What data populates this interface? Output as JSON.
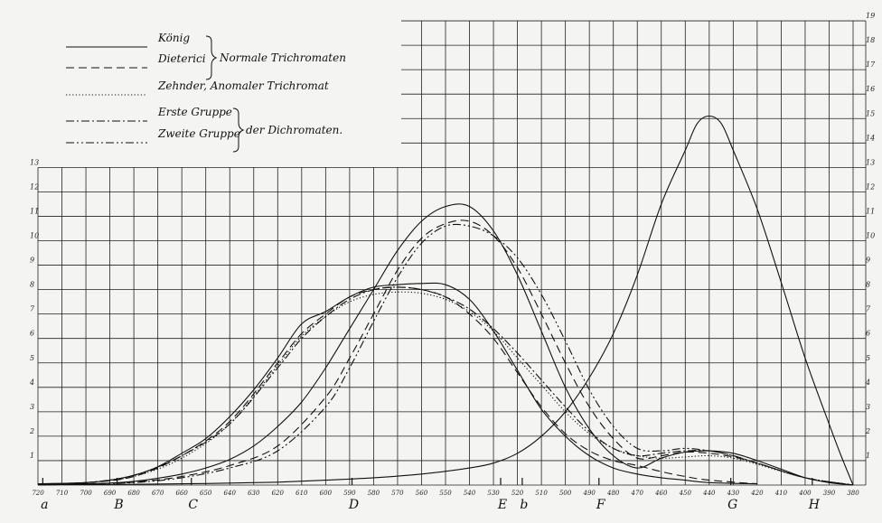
{
  "chart_data": {
    "type": "line",
    "x_ticks": [
      "720",
      "710",
      "700",
      "690",
      "680",
      "670",
      "660",
      "650",
      "640",
      "630",
      "620",
      "610",
      "600",
      "590",
      "580",
      "570",
      "560",
      "550",
      "540",
      "530",
      "520",
      "510",
      "500",
      "490",
      "480",
      "470",
      "460",
      "450",
      "440",
      "430",
      "420",
      "410",
      "400",
      "390",
      "380"
    ],
    "y_left_ticks": [
      "1",
      "2",
      "3",
      "4",
      "5",
      "6",
      "7",
      "8",
      "9",
      "10",
      "11",
      "12",
      "13"
    ],
    "y_right_ticks": [
      "1",
      "2",
      "3",
      "4",
      "5",
      "6",
      "7",
      "8",
      "9",
      "10",
      "11",
      "12",
      "13",
      "14",
      "15",
      "16",
      "17",
      "18",
      "19"
    ],
    "fraunhofer_lines": [
      {
        "label": "a",
        "x": 718
      },
      {
        "label": "B",
        "x": 687
      },
      {
        "label": "C",
        "x": 656
      },
      {
        "label": "D",
        "x": 589
      },
      {
        "label": "E",
        "x": 527
      },
      {
        "label": "b",
        "x": 518
      },
      {
        "label": "F",
        "x": 486
      },
      {
        "label": "G",
        "x": 431
      },
      {
        "label": "H",
        "x": 397
      }
    ],
    "legend": {
      "entries": [
        {
          "name": "König",
          "style": "solid"
        },
        {
          "name": "Dieterici",
          "style": "dashed"
        },
        {
          "name": "Zehnder, Anomaler Trichromat",
          "style": "dotted"
        },
        {
          "name": "Erste Gruppe",
          "style": "dashdot"
        },
        {
          "name": "Zweite Gruppe",
          "style": "dashdotdot"
        }
      ],
      "group1_label": "Normale Trichromaten",
      "group2_label": "der Dichromaten."
    },
    "series": [
      {
        "style": "solid",
        "points": [
          [
            720,
            0.05
          ],
          [
            700,
            0.1
          ],
          [
            690,
            0.2
          ],
          [
            680,
            0.4
          ],
          [
            670,
            0.75
          ],
          [
            660,
            1.3
          ],
          [
            650,
            1.9
          ],
          [
            640,
            2.8
          ],
          [
            630,
            3.9
          ],
          [
            620,
            5.2
          ],
          [
            610,
            6.6
          ],
          [
            600,
            7.1
          ],
          [
            590,
            7.7
          ],
          [
            580,
            8.1
          ],
          [
            570,
            8.2
          ],
          [
            560,
            8.25
          ],
          [
            550,
            8.2
          ],
          [
            540,
            7.6
          ],
          [
            530,
            6.3
          ],
          [
            520,
            4.7
          ],
          [
            510,
            3.1
          ],
          [
            500,
            2.0
          ],
          [
            490,
            1.2
          ],
          [
            480,
            0.7
          ],
          [
            470,
            0.45
          ],
          [
            460,
            0.3
          ],
          [
            450,
            0.2
          ],
          [
            440,
            0.1
          ],
          [
            420,
            0.05
          ]
        ]
      },
      {
        "style": "solid",
        "points": [
          [
            720,
            0.0
          ],
          [
            700,
            0.05
          ],
          [
            690,
            0.08
          ],
          [
            680,
            0.15
          ],
          [
            670,
            0.28
          ],
          [
            660,
            0.45
          ],
          [
            650,
            0.7
          ],
          [
            640,
            1.05
          ],
          [
            630,
            1.6
          ],
          [
            620,
            2.4
          ],
          [
            610,
            3.4
          ],
          [
            600,
            4.8
          ],
          [
            590,
            6.4
          ],
          [
            580,
            8.0
          ],
          [
            570,
            9.6
          ],
          [
            560,
            10.8
          ],
          [
            550,
            11.4
          ],
          [
            540,
            11.4
          ],
          [
            530,
            10.4
          ],
          [
            520,
            8.6
          ],
          [
            510,
            6.3
          ],
          [
            500,
            4.0
          ],
          [
            490,
            2.3
          ],
          [
            480,
            1.2
          ],
          [
            470,
            0.7
          ],
          [
            460,
            1.1
          ],
          [
            450,
            1.35
          ],
          [
            440,
            1.4
          ],
          [
            430,
            1.3
          ],
          [
            420,
            1.0
          ],
          [
            410,
            0.65
          ],
          [
            400,
            0.3
          ],
          [
            390,
            0.1
          ],
          [
            380,
            0.0
          ]
        ]
      },
      {
        "style": "solid",
        "points": [
          [
            720,
            0.02
          ],
          [
            700,
            0.02
          ],
          [
            680,
            0.03
          ],
          [
            660,
            0.05
          ],
          [
            640,
            0.08
          ],
          [
            620,
            0.12
          ],
          [
            600,
            0.2
          ],
          [
            580,
            0.3
          ],
          [
            560,
            0.45
          ],
          [
            540,
            0.7
          ],
          [
            530,
            0.9
          ],
          [
            520,
            1.3
          ],
          [
            510,
            2.0
          ],
          [
            500,
            3.0
          ],
          [
            490,
            4.4
          ],
          [
            480,
            6.2
          ],
          [
            470,
            8.6
          ],
          [
            460,
            11.5
          ],
          [
            450,
            13.7
          ],
          [
            445,
            14.8
          ],
          [
            440,
            15.1
          ],
          [
            435,
            14.8
          ],
          [
            430,
            13.7
          ],
          [
            420,
            11.3
          ],
          [
            410,
            8.3
          ],
          [
            400,
            5.2
          ],
          [
            390,
            2.5
          ],
          [
            385,
            1.2
          ],
          [
            380,
            0.0
          ]
        ]
      },
      {
        "style": "dashed",
        "points": [
          [
            720,
            0.05
          ],
          [
            700,
            0.1
          ],
          [
            680,
            0.35
          ],
          [
            660,
            1.2
          ],
          [
            640,
            2.6
          ],
          [
            620,
            5.0
          ],
          [
            610,
            6.2
          ],
          [
            600,
            7.0
          ],
          [
            590,
            7.7
          ],
          [
            580,
            8.0
          ],
          [
            570,
            8.1
          ],
          [
            560,
            8.0
          ],
          [
            550,
            7.7
          ],
          [
            540,
            7.0
          ],
          [
            530,
            6.0
          ],
          [
            520,
            4.6
          ],
          [
            510,
            3.2
          ],
          [
            500,
            2.1
          ],
          [
            490,
            1.4
          ],
          [
            480,
            1.0
          ],
          [
            470,
            0.8
          ],
          [
            460,
            0.55
          ],
          [
            450,
            0.35
          ],
          [
            440,
            0.2
          ],
          [
            420,
            0.05
          ]
        ]
      },
      {
        "style": "dashed",
        "points": [
          [
            720,
            0.0
          ],
          [
            700,
            0.05
          ],
          [
            680,
            0.12
          ],
          [
            660,
            0.35
          ],
          [
            640,
            0.8
          ],
          [
            620,
            1.6
          ],
          [
            600,
            3.6
          ],
          [
            590,
            5.2
          ],
          [
            580,
            7.0
          ],
          [
            570,
            8.8
          ],
          [
            560,
            10.1
          ],
          [
            550,
            10.7
          ],
          [
            540,
            10.8
          ],
          [
            530,
            10.2
          ],
          [
            520,
            8.9
          ],
          [
            510,
            7.0
          ],
          [
            500,
            5.0
          ],
          [
            490,
            3.2
          ],
          [
            480,
            1.9
          ],
          [
            470,
            1.1
          ],
          [
            460,
            1.2
          ],
          [
            450,
            1.35
          ],
          [
            440,
            1.3
          ],
          [
            430,
            1.15
          ],
          [
            420,
            0.9
          ],
          [
            400,
            0.3
          ],
          [
            380,
            0.0
          ]
        ]
      },
      {
        "style": "dotted",
        "points": [
          [
            720,
            0.05
          ],
          [
            700,
            0.1
          ],
          [
            680,
            0.35
          ],
          [
            660,
            1.1
          ],
          [
            640,
            2.5
          ],
          [
            620,
            4.9
          ],
          [
            610,
            6.1
          ],
          [
            600,
            6.9
          ],
          [
            590,
            7.5
          ],
          [
            580,
            7.8
          ],
          [
            570,
            7.9
          ],
          [
            560,
            7.85
          ],
          [
            550,
            7.6
          ],
          [
            540,
            7.1
          ],
          [
            530,
            6.3
          ],
          [
            520,
            5.2
          ],
          [
            510,
            4.1
          ],
          [
            500,
            3.0
          ],
          [
            490,
            2.1
          ],
          [
            480,
            1.5
          ],
          [
            470,
            1.2
          ],
          [
            460,
            1.1
          ],
          [
            450,
            1.15
          ],
          [
            440,
            1.2
          ],
          [
            430,
            1.1
          ],
          [
            420,
            0.85
          ],
          [
            400,
            0.3
          ],
          [
            380,
            0.0
          ]
        ]
      },
      {
        "style": "dashdot",
        "points": [
          [
            720,
            0.05
          ],
          [
            700,
            0.1
          ],
          [
            680,
            0.4
          ],
          [
            660,
            1.2
          ],
          [
            640,
            2.5
          ],
          [
            620,
            4.8
          ],
          [
            610,
            6.0
          ],
          [
            600,
            6.9
          ],
          [
            590,
            7.6
          ],
          [
            580,
            8.0
          ],
          [
            570,
            8.1
          ],
          [
            560,
            8.0
          ],
          [
            550,
            7.7
          ],
          [
            540,
            7.2
          ],
          [
            530,
            6.4
          ],
          [
            520,
            5.4
          ],
          [
            510,
            4.3
          ],
          [
            500,
            3.2
          ],
          [
            490,
            2.2
          ],
          [
            480,
            1.5
          ],
          [
            470,
            1.2
          ],
          [
            460,
            1.3
          ],
          [
            450,
            1.4
          ],
          [
            440,
            1.4
          ],
          [
            430,
            1.2
          ],
          [
            420,
            0.9
          ],
          [
            400,
            0.3
          ],
          [
            380,
            0.0
          ]
        ]
      },
      {
        "style": "dashdotdot",
        "points": [
          [
            720,
            0.0
          ],
          [
            700,
            0.05
          ],
          [
            680,
            0.1
          ],
          [
            660,
            0.3
          ],
          [
            640,
            0.7
          ],
          [
            620,
            1.4
          ],
          [
            600,
            3.2
          ],
          [
            590,
            4.8
          ],
          [
            580,
            6.7
          ],
          [
            570,
            8.5
          ],
          [
            560,
            9.9
          ],
          [
            550,
            10.6
          ],
          [
            540,
            10.6
          ],
          [
            530,
            10.2
          ],
          [
            520,
            9.3
          ],
          [
            510,
            7.8
          ],
          [
            500,
            5.9
          ],
          [
            490,
            3.9
          ],
          [
            480,
            2.4
          ],
          [
            470,
            1.5
          ],
          [
            460,
            1.4
          ],
          [
            450,
            1.5
          ],
          [
            440,
            1.4
          ],
          [
            430,
            1.2
          ],
          [
            420,
            0.9
          ],
          [
            400,
            0.3
          ],
          [
            380,
            0.0
          ]
        ]
      }
    ]
  }
}
